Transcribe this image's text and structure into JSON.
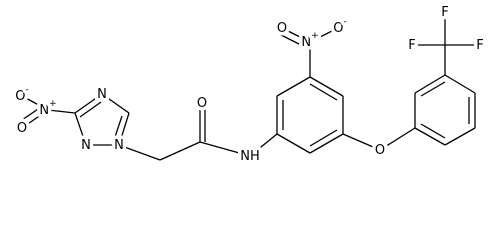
{
  "atoms": [
    {
      "symbol": "O",
      "charge": "-"
    },
    {
      "symbol": "N",
      "charge": "+"
    },
    {
      "symbol": "O"
    },
    {
      "symbol": "N"
    },
    {
      "symbol": "N"
    },
    {
      "symbol": "N"
    },
    {
      "symbol": "O"
    },
    {
      "symbol": "NH"
    },
    {
      "symbol": "N",
      "charge": "+"
    },
    {
      "symbol": "O",
      "charge": "-"
    },
    {
      "symbol": "O"
    },
    {
      "symbol": "O"
    },
    {
      "symbol": "F"
    },
    {
      "symbol": "F"
    },
    {
      "symbol": "F"
    }
  ]
}
